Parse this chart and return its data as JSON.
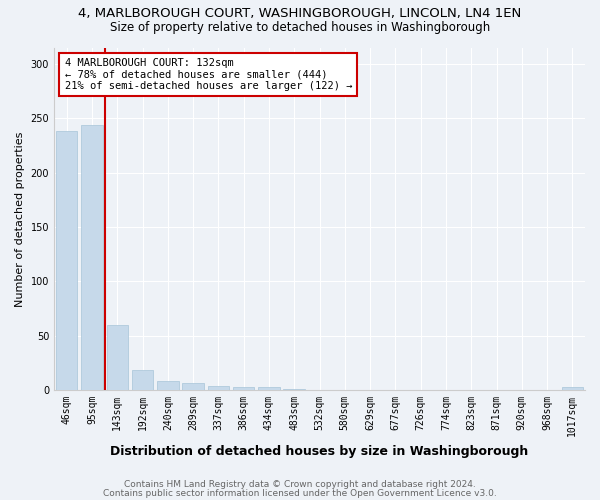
{
  "title1": "4, MARLBOROUGH COURT, WASHINGBOROUGH, LINCOLN, LN4 1EN",
  "title2": "Size of property relative to detached houses in Washingborough",
  "xlabel": "Distribution of detached houses by size in Washingborough",
  "ylabel": "Number of detached properties",
  "categories": [
    "46sqm",
    "95sqm",
    "143sqm",
    "192sqm",
    "240sqm",
    "289sqm",
    "337sqm",
    "386sqm",
    "434sqm",
    "483sqm",
    "532sqm",
    "580sqm",
    "629sqm",
    "677sqm",
    "726sqm",
    "774sqm",
    "823sqm",
    "871sqm",
    "920sqm",
    "968sqm",
    "1017sqm"
  ],
  "values": [
    238,
    244,
    60,
    19,
    8,
    7,
    4,
    3,
    3,
    1,
    0,
    0,
    0,
    0,
    0,
    0,
    0,
    0,
    0,
    0,
    3
  ],
  "bar_color": "#c6d9ea",
  "bar_edge_color": "#a8c4d8",
  "red_line_color": "#cc0000",
  "red_line_x": 1.5,
  "annotation_text": "4 MARLBOROUGH COURT: 132sqm\n← 78% of detached houses are smaller (444)\n21% of semi-detached houses are larger (122) →",
  "annotation_box_facecolor": "#ffffff",
  "annotation_box_edgecolor": "#cc0000",
  "ylim": [
    0,
    315
  ],
  "yticks": [
    0,
    50,
    100,
    150,
    200,
    250,
    300
  ],
  "footer1": "Contains HM Land Registry data © Crown copyright and database right 2024.",
  "footer2": "Contains public sector information licensed under the Open Government Licence v3.0.",
  "bg_color": "#eef2f7",
  "grid_color": "#ffffff",
  "title1_fontsize": 9.5,
  "title2_fontsize": 8.5,
  "xlabel_fontsize": 9,
  "ylabel_fontsize": 8,
  "tick_fontsize": 7,
  "annotation_fontsize": 7.5,
  "footer_fontsize": 6.5
}
